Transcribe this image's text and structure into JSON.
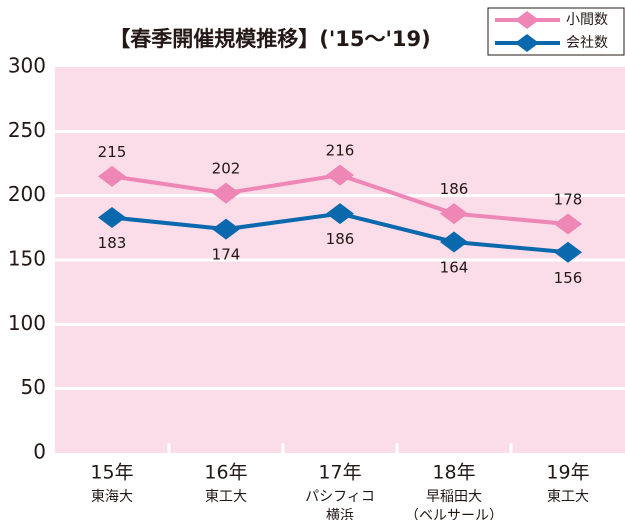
{
  "chart_data": {
    "type": "line",
    "title": "【春季開催規模推移】('15～'19)",
    "categories": [
      "15年",
      "16年",
      "17年",
      "18年",
      "19年"
    ],
    "venues": [
      [
        "東海大"
      ],
      [
        "東工大"
      ],
      [
        "パシフィコ",
        "横浜"
      ],
      [
        "早稲田大",
        "（ベルサール）"
      ],
      [
        "東工大"
      ]
    ],
    "series": [
      {
        "name": "小間数",
        "color": "#ee86b6",
        "values": [
          215,
          202,
          216,
          186,
          178
        ]
      },
      {
        "name": "会社数",
        "color": "#0a68ad",
        "values": [
          183,
          174,
          186,
          164,
          156
        ]
      }
    ],
    "ylim": [
      0,
      300
    ],
    "yticks": [
      0,
      50,
      100,
      150,
      200,
      250,
      300
    ],
    "grid": true,
    "legend": "top-right"
  }
}
